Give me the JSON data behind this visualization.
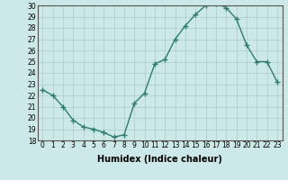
{
  "title": "",
  "xlabel": "Humidex (Indice chaleur)",
  "ylabel": "",
  "x": [
    0,
    1,
    2,
    3,
    4,
    5,
    6,
    7,
    8,
    9,
    10,
    11,
    12,
    13,
    14,
    15,
    16,
    17,
    18,
    19,
    20,
    21,
    22,
    23
  ],
  "y": [
    22.5,
    22.0,
    21.0,
    19.8,
    19.2,
    19.0,
    18.7,
    18.3,
    18.5,
    21.3,
    22.2,
    24.8,
    25.2,
    27.0,
    28.2,
    29.2,
    30.0,
    30.2,
    29.8,
    28.8,
    26.5,
    25.0,
    25.0,
    23.2
  ],
  "line_color": "#2e7d6e",
  "marker": "+",
  "markersize": 4,
  "markeredgewidth": 1.0,
  "linewidth": 1.0,
  "ylim": [
    18,
    30
  ],
  "xlim": [
    -0.5,
    23.5
  ],
  "yticks": [
    18,
    19,
    20,
    21,
    22,
    23,
    24,
    25,
    26,
    27,
    28,
    29,
    30
  ],
  "xticks": [
    0,
    1,
    2,
    3,
    4,
    5,
    6,
    7,
    8,
    9,
    10,
    11,
    12,
    13,
    14,
    15,
    16,
    17,
    18,
    19,
    20,
    21,
    22,
    23
  ],
  "bg_color": "#cce8e8",
  "grid_color": "#aacccc",
  "tick_fontsize": 5.5,
  "xlabel_fontsize": 7,
  "xlabel_fontweight": "bold"
}
